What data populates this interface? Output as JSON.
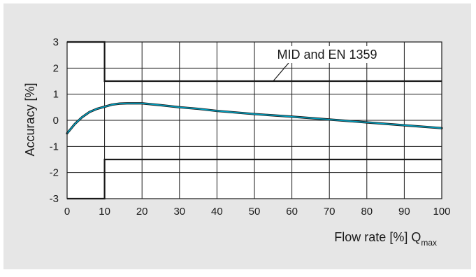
{
  "chart_data": {
    "type": "line",
    "xlabel": "Flow rate [%] Q",
    "xlabel_sub": "max",
    "ylabel": "Accuracy [%]",
    "xlim": [
      0,
      100
    ],
    "ylim": [
      -3,
      3
    ],
    "xticks": [
      0,
      10,
      20,
      30,
      40,
      50,
      60,
      70,
      80,
      90,
      100
    ],
    "yticks": [
      3,
      2,
      1,
      0,
      -1,
      -2,
      -3
    ],
    "grid": true,
    "series": [
      {
        "color": "#00a3c4",
        "x": [
          0,
          2,
          4,
          6,
          8,
          10,
          12,
          14,
          16,
          18,
          20,
          25,
          30,
          35,
          40,
          50,
          60,
          70,
          80,
          90,
          100
        ],
        "y": [
          -0.5,
          -0.15,
          0.12,
          0.32,
          0.44,
          0.52,
          0.6,
          0.64,
          0.65,
          0.65,
          0.65,
          0.58,
          0.5,
          0.44,
          0.36,
          0.24,
          0.14,
          0.03,
          -0.08,
          -0.19,
          -0.3
        ]
      }
    ],
    "limits": {
      "name": "MID and EN 1359",
      "color": "#1a1a1a",
      "upper": {
        "x": [
          0,
          10,
          10,
          100
        ],
        "y": [
          3,
          3,
          1.5,
          1.5
        ]
      },
      "lower": {
        "x": [
          0,
          10,
          10,
          100
        ],
        "y": [
          -3,
          -3,
          -1.5,
          -1.5
        ]
      }
    },
    "annotation": {
      "text": "MID and EN 1359",
      "points_to_x": 55,
      "points_to_y": 1.5
    }
  }
}
